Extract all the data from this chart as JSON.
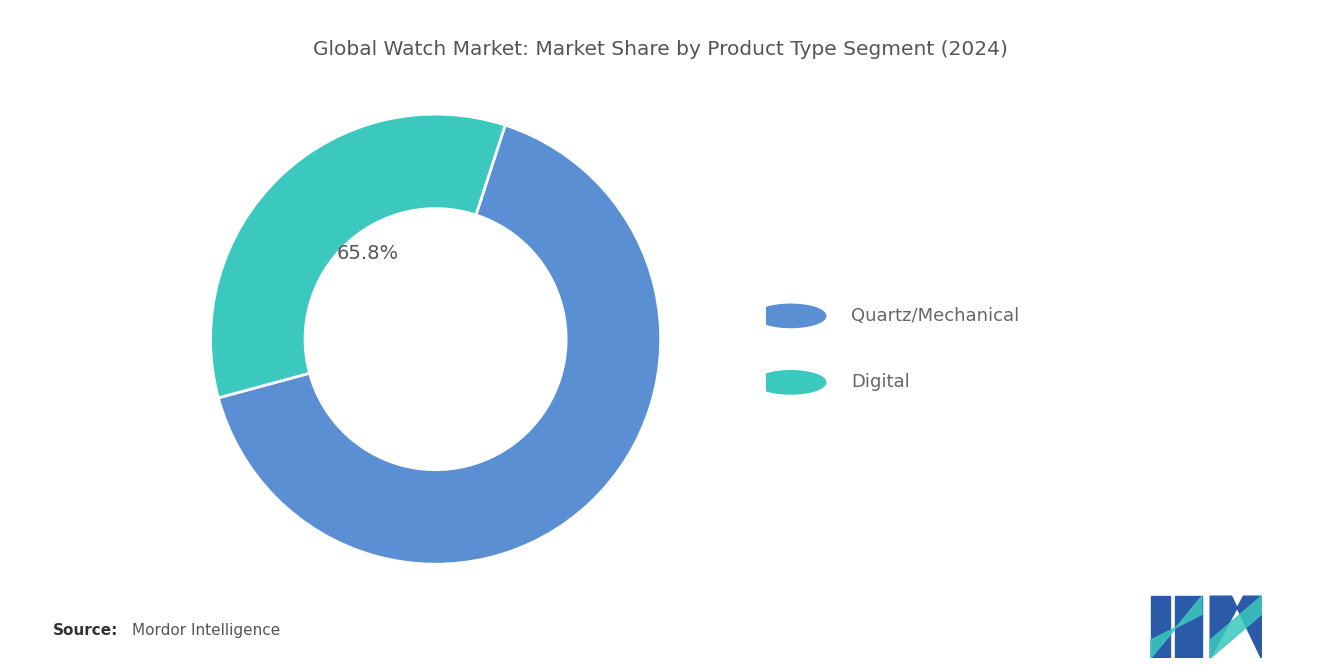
{
  "title": "Global Watch Market: Market Share by Product Type Segment (2024)",
  "slices": [
    65.8,
    34.2
  ],
  "labels": [
    "Quartz/Mechanical",
    "Digital"
  ],
  "colors": [
    "#5B8FD4",
    "#3BC8BE"
  ],
  "label_text": "65.8%",
  "source_bold": "Source:",
  "source_text": "Mordor Intelligence",
  "background_color": "#ffffff",
  "title_color": "#555555",
  "legend_colors": [
    "#5B8FD4",
    "#3BC8BE"
  ],
  "donut_width": 0.42,
  "start_angle": 72
}
